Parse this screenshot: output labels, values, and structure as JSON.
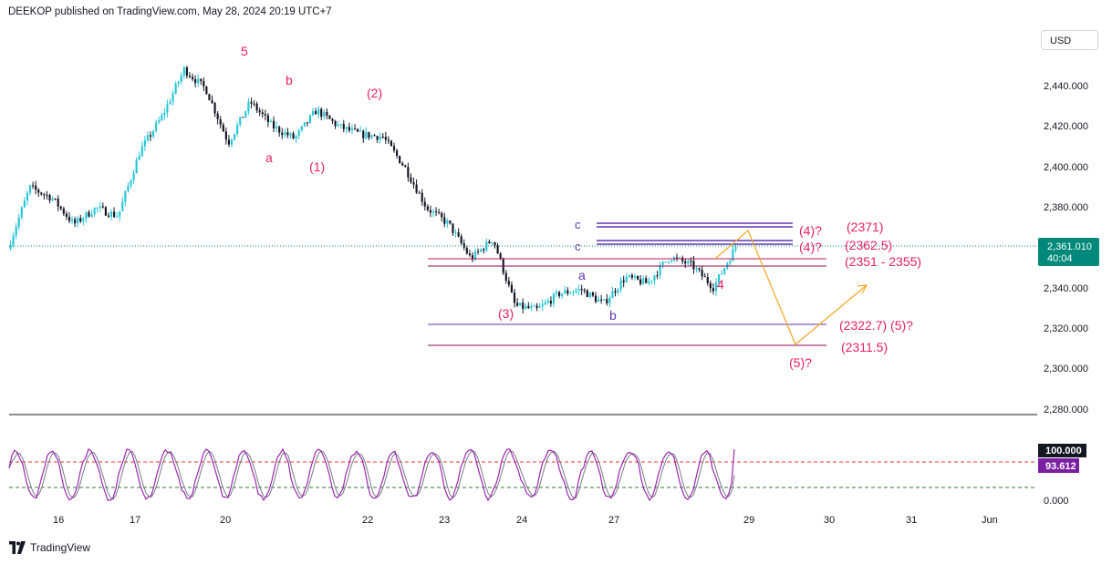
{
  "header": {
    "published": "DEEKOP published on TradingView.com, May 28, 2024 20:19 UTC+7"
  },
  "currency_button": "USD",
  "footer": {
    "brand": "TradingView",
    "logo_icon": "tradingview-logo-icon"
  },
  "price_axis": {
    "ticks": [
      "2,440.000",
      "2,420.000",
      "2,400.000",
      "2,380.000",
      "2,340.000",
      "2,320.000",
      "2,300.000",
      "2,280.000"
    ]
  },
  "current_price": {
    "value": "2,361.010",
    "countdown": "40:04"
  },
  "time_axis": {
    "labels": [
      "16",
      "17",
      "20",
      "22",
      "23",
      "24",
      "27",
      "29",
      "30",
      "31",
      "Jun"
    ]
  },
  "oscillator": {
    "label_high": "100.000",
    "value": "93.612",
    "label_low": "0.000"
  },
  "wave_labels": {
    "w5": "5",
    "wa": "a",
    "wb": "b",
    "w1": "(1)",
    "w2": "(2)",
    "w3": "(3)",
    "wa2": "a",
    "wb2": "b",
    "w4": "4",
    "wc1": "c",
    "wc2": "c",
    "w5q": "(5)?"
  },
  "level_labels": {
    "l2371": "(2371)",
    "l23625": "(2362.5)",
    "lrange": "(2351 - 2355)",
    "l23227": "(2322.7) (5)?",
    "l23115": "(2311.5)",
    "q4a": "(4)?",
    "q4b": "(4)?"
  },
  "colors": {
    "bull": "#26c6da",
    "bear": "#131722",
    "wave_red": "#e91e63",
    "wave_purple": "#5e35b1",
    "projection": "#f5a623",
    "current_line": "#00897b",
    "osc_k": "#9c27b0",
    "osc_d": "#787b86"
  },
  "chart_data": {
    "type": "candlestick",
    "symbol_currency": "USD",
    "y_range": [
      2280,
      2450
    ],
    "close_path": [
      {
        "date": "May 15",
        "close": 2360
      },
      {
        "date": "May 16",
        "close": 2390
      },
      {
        "date": "May 16",
        "close": 2385
      },
      {
        "date": "May 17",
        "close": 2372
      },
      {
        "date": "May 17",
        "close": 2380
      },
      {
        "date": "May 17",
        "close": 2376
      },
      {
        "date": "May 20",
        "close": 2408
      },
      {
        "date": "May 20",
        "close": 2425
      },
      {
        "date": "May 20",
        "close": 2448
      },
      {
        "date": "May 20",
        "close": 2438
      },
      {
        "date": "May 21",
        "close": 2412
      },
      {
        "date": "May 21",
        "close": 2432
      },
      {
        "date": "May 21",
        "close": 2420
      },
      {
        "date": "May 21",
        "close": 2414
      },
      {
        "date": "May 22",
        "close": 2428
      },
      {
        "date": "May 22",
        "close": 2420
      },
      {
        "date": "May 22",
        "close": 2416
      },
      {
        "date": "May 22",
        "close": 2415
      },
      {
        "date": "May 23",
        "close": 2400
      },
      {
        "date": "May 23",
        "close": 2380
      },
      {
        "date": "May 23",
        "close": 2372
      },
      {
        "date": "May 23",
        "close": 2355
      },
      {
        "date": "May 23",
        "close": 2365
      },
      {
        "date": "May 24",
        "close": 2332
      },
      {
        "date": "May 24",
        "close": 2330
      },
      {
        "date": "May 24",
        "close": 2338
      },
      {
        "date": "May 24",
        "close": 2340
      },
      {
        "date": "May 27",
        "close": 2333
      },
      {
        "date": "May 27",
        "close": 2346
      },
      {
        "date": "May 27",
        "close": 2343
      },
      {
        "date": "May 28",
        "close": 2356
      },
      {
        "date": "May 28",
        "close": 2352
      },
      {
        "date": "May 28",
        "close": 2341
      },
      {
        "date": "May 28",
        "close": 2361
      }
    ],
    "levels": [
      {
        "label": "(2371)",
        "value": 2371,
        "color": "#5e35b1"
      },
      {
        "label": "(2362.5)",
        "value": 2362.5,
        "color": "#5e35b1"
      },
      {
        "label": "(2351 - 2355)",
        "values": [
          2351,
          2355
        ],
        "color": "#c2185b"
      },
      {
        "label": "(2322.7) (5)?",
        "value": 2322.7,
        "color": "#5e35b1"
      },
      {
        "label": "(2311.5)",
        "value": 2311.5,
        "color": "#880e4f"
      }
    ],
    "current_price": 2361.01,
    "wave_count": [
      "(1)",
      "(2)",
      "(3)",
      "a",
      "b",
      "4",
      "c",
      "(4)?",
      "(5)?"
    ],
    "projection": [
      {
        "date": "May 28",
        "price": 2352
      },
      {
        "date": "May 28",
        "price": 2370
      },
      {
        "date": "May 29",
        "price": 2311
      },
      {
        "date": "May 31",
        "price": 2340
      }
    ],
    "oscillator": {
      "range": [
        0,
        100
      ],
      "last": 93.612,
      "upper_band": 80,
      "lower_band": 20
    }
  }
}
